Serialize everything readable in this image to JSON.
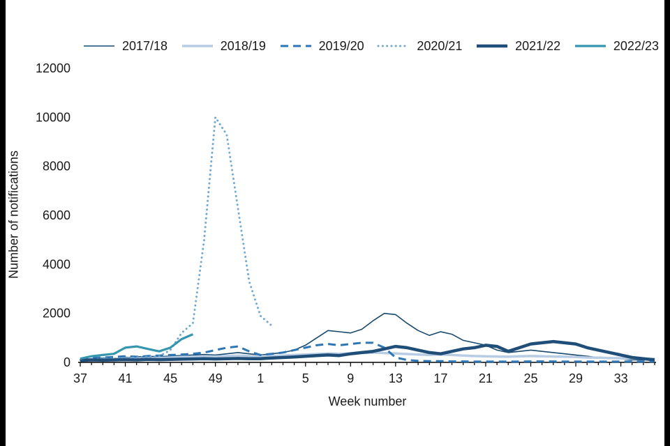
{
  "chart_data": {
    "type": "line",
    "title": "",
    "x_label": "Week number",
    "y_label": "Number of notifications",
    "ylim": [
      0,
      12000
    ],
    "y_ticks": [
      0,
      2000,
      4000,
      6000,
      8000,
      10000,
      12000
    ],
    "x_tick_labels": [
      37,
      41,
      45,
      49,
      1,
      5,
      9,
      13,
      17,
      21,
      25,
      29,
      33
    ],
    "grid": false,
    "legend_position": "top",
    "axis_color": "#000000",
    "text_color": "#1a1a1a",
    "categories": [
      37,
      38,
      39,
      40,
      41,
      42,
      43,
      44,
      45,
      46,
      47,
      48,
      49,
      50,
      51,
      52,
      1,
      2,
      3,
      4,
      5,
      6,
      7,
      8,
      9,
      10,
      11,
      12,
      13,
      14,
      15,
      16,
      17,
      18,
      19,
      20,
      21,
      22,
      23,
      24,
      25,
      26,
      27,
      28,
      29,
      30,
      31,
      32,
      33,
      34,
      35,
      36
    ],
    "series": [
      {
        "name": "2017/18",
        "color": "#17486e",
        "width": 1.6,
        "dash": "solid",
        "values": [
          120,
          150,
          180,
          160,
          200,
          220,
          250,
          230,
          260,
          280,
          300,
          320,
          300,
          350,
          400,
          350,
          300,
          350,
          400,
          500,
          700,
          1000,
          1300,
          1250,
          1200,
          1350,
          1700,
          2000,
          1950,
          1600,
          1300,
          1100,
          1250,
          1150,
          900,
          800,
          700,
          500,
          400,
          450,
          500,
          450,
          400,
          350,
          300,
          250,
          200,
          150,
          150,
          100,
          100,
          150
        ]
      },
      {
        "name": "2018/19",
        "color": "#b8cce4",
        "width": 3.5,
        "dash": "solid",
        "values": [
          100,
          120,
          130,
          140,
          150,
          160,
          170,
          180,
          200,
          220,
          230,
          250,
          240,
          260,
          280,
          260,
          250,
          260,
          280,
          300,
          320,
          340,
          360,
          350,
          370,
          380,
          400,
          380,
          360,
          340,
          320,
          300,
          320,
          300,
          280,
          260,
          250,
          240,
          230,
          250,
          260,
          250,
          240,
          230,
          220,
          200,
          190,
          180,
          170,
          160,
          150,
          150
        ]
      },
      {
        "name": "2019/20",
        "color": "#2e75b6",
        "width": 3,
        "dash": "dashed",
        "values": [
          150,
          180,
          200,
          220,
          250,
          230,
          260,
          280,
          300,
          320,
          350,
          400,
          500,
          600,
          650,
          450,
          300,
          350,
          400,
          500,
          600,
          700,
          750,
          700,
          750,
          800,
          800,
          600,
          200,
          100,
          60,
          50,
          50,
          40,
          40,
          30,
          30,
          30,
          30,
          30,
          40,
          40,
          40,
          30,
          30,
          30,
          30,
          30,
          30,
          30,
          30,
          40
        ]
      },
      {
        "name": "2020/21",
        "color": "#74a9cf",
        "width": 3,
        "dash": "dotted",
        "values": [
          100,
          120,
          150,
          150,
          180,
          200,
          220,
          250,
          500,
          1200,
          1600,
          5000,
          10000,
          9300,
          6300,
          3300,
          1900,
          1500,
          null,
          null,
          null,
          null,
          null,
          null,
          null,
          null,
          null,
          null,
          null,
          null,
          null,
          null,
          null,
          null,
          null,
          null,
          null,
          null,
          null,
          null,
          null,
          null,
          null,
          null,
          null,
          null,
          null,
          null,
          null,
          null,
          null,
          null
        ]
      },
      {
        "name": "2021/22",
        "color": "#1f4e79",
        "width": 4.5,
        "dash": "solid",
        "values": [
          80,
          100,
          90,
          100,
          110,
          100,
          120,
          110,
          120,
          130,
          140,
          150,
          140,
          150,
          160,
          150,
          150,
          180,
          200,
          220,
          250,
          280,
          300,
          280,
          350,
          400,
          450,
          550,
          650,
          600,
          500,
          400,
          350,
          450,
          550,
          600,
          700,
          650,
          450,
          600,
          750,
          800,
          850,
          800,
          750,
          600,
          500,
          400,
          300,
          200,
          150,
          100
        ]
      },
      {
        "name": "2022/23",
        "color": "#3596ad",
        "width": 3.2,
        "dash": "solid",
        "values": [
          150,
          250,
          300,
          350,
          600,
          650,
          550,
          450,
          600,
          950,
          1150,
          null,
          null,
          null,
          null,
          null,
          null,
          null,
          null,
          null,
          null,
          null,
          null,
          null,
          null,
          null,
          null,
          null,
          null,
          null,
          null,
          null,
          null,
          null,
          null,
          null,
          null,
          null,
          null,
          null,
          null,
          null,
          null,
          null,
          null,
          null,
          null,
          null,
          null,
          null,
          null,
          null
        ]
      }
    ]
  }
}
